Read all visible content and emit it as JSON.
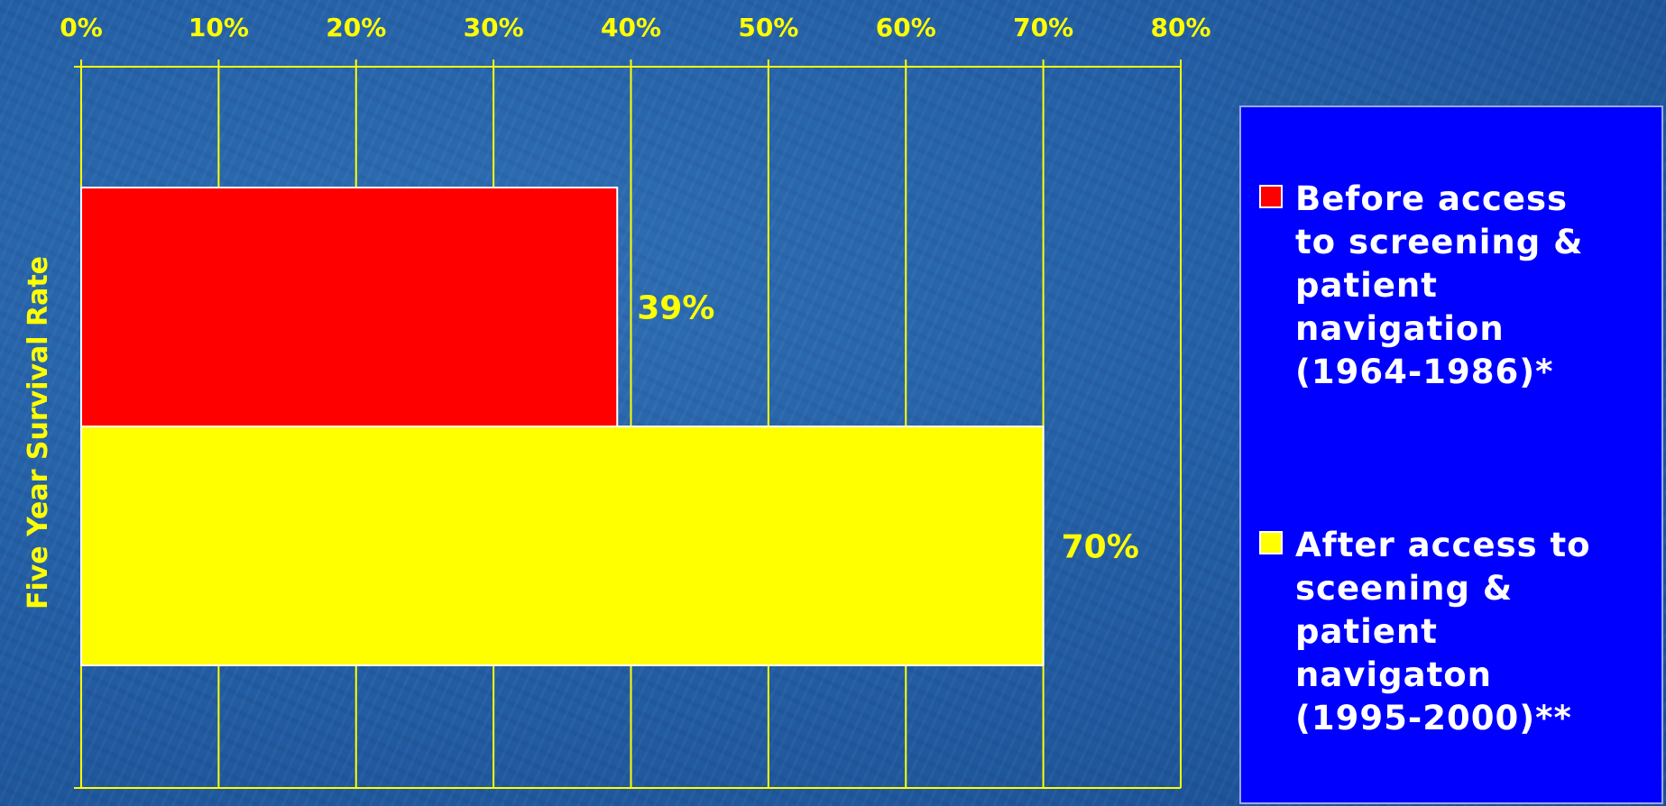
{
  "chart_data": {
    "type": "bar",
    "orientation": "horizontal",
    "title": "",
    "xlabel": "",
    "ylabel": "Five Year Survival Rate",
    "xlim": [
      0,
      80
    ],
    "x_ticks": [
      "0%",
      "10%",
      "20%",
      "30%",
      "40%",
      "50%",
      "60%",
      "70%",
      "80%"
    ],
    "x_axis_position": "top",
    "grid": true,
    "legend_position": "right",
    "series": [
      {
        "name": "Before access to screening & patient navigation (1964-1986)*",
        "legend_text": "Before access\nto screening &\npatient\nnavigation\n(1964-1986)*",
        "value": 39,
        "label": "39%",
        "color": "#ff0000"
      },
      {
        "name": "After access to sceening & patient navigaton (1995-2000)**",
        "legend_text": "After access to\nsceening &\npatient\nnavigaton\n(1995-2000)**",
        "value": 70,
        "label": "70%",
        "color": "#ffff00"
      }
    ],
    "colors": {
      "axis": "#ffff00",
      "legend_background": "#0000ff",
      "legend_text": "#ffffff"
    }
  }
}
